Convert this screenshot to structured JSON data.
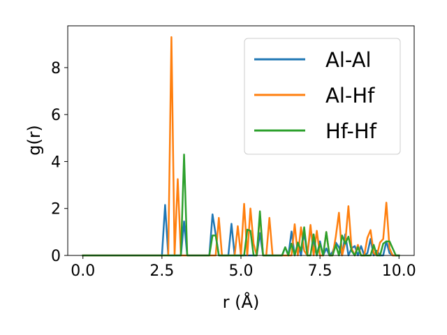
{
  "chart_data": {
    "type": "line",
    "xlabel": "r (Å)",
    "ylabel": "g(r)",
    "xlim": [
      -0.48,
      10.48
    ],
    "ylim": [
      0,
      9.78
    ],
    "xticks": [
      0.0,
      2.5,
      5.0,
      7.5,
      10.0
    ],
    "xtick_labels": [
      "0.0",
      "2.5",
      "5.0",
      "7.5",
      "10.0"
    ],
    "yticks": [
      0,
      2,
      4,
      6,
      8
    ],
    "ytick_labels": [
      "0",
      "2",
      "4",
      "6",
      "8"
    ],
    "grid": false,
    "legend_position": "top-right",
    "series": [
      {
        "name": "Al-Al",
        "color": "#1f77b4",
        "x": [
          0.0,
          2.5,
          2.6,
          2.7,
          2.8,
          3.0,
          3.1,
          3.2,
          3.3,
          3.4,
          4.0,
          4.1,
          4.2,
          4.3,
          4.6,
          4.7,
          4.8,
          5.0,
          5.1,
          5.2,
          5.3,
          5.5,
          5.6,
          5.7,
          6.3,
          6.4,
          6.5,
          6.6,
          6.7,
          6.8,
          6.9,
          7.0,
          7.1,
          7.2,
          7.3,
          7.4,
          7.5,
          7.6,
          7.7,
          7.8,
          7.9,
          8.0,
          8.1,
          8.2,
          8.3,
          8.4,
          8.5,
          8.6,
          8.7,
          8.8,
          8.9,
          9.0,
          9.1,
          9.2,
          9.3,
          9.4,
          9.5,
          9.6,
          9.7,
          9.8,
          10.0
        ],
        "y": [
          0,
          0,
          2.15,
          0,
          0,
          0,
          0,
          1.45,
          0,
          0,
          0,
          1.75,
          0.9,
          0,
          0,
          1.35,
          0,
          0,
          0,
          0,
          0,
          0,
          0.95,
          0,
          0,
          0.35,
          0,
          1.02,
          0,
          0.5,
          0,
          1.0,
          0,
          1.12,
          0.5,
          0,
          0.6,
          0,
          0.3,
          0,
          0.15,
          0.55,
          0.35,
          0,
          0.9,
          0,
          0.3,
          0.4,
          0,
          0.4,
          0,
          0.1,
          0.7,
          0,
          0.2,
          0,
          0,
          0.6,
          0.1,
          0,
          0
        ]
      },
      {
        "name": "Al-Hf",
        "color": "#ff7f0e",
        "x": [
          0.0,
          2.7,
          2.8,
          2.9,
          3.0,
          3.1,
          3.2,
          4.2,
          4.3,
          4.4,
          4.8,
          4.9,
          5.0,
          5.1,
          5.2,
          5.3,
          5.4,
          5.5,
          5.6,
          5.7,
          5.8,
          5.9,
          6.0,
          6.1,
          6.2,
          6.5,
          6.6,
          6.7,
          6.8,
          6.9,
          7.0,
          7.1,
          7.2,
          7.3,
          7.4,
          7.5,
          7.6,
          7.7,
          7.8,
          7.9,
          8.0,
          8.1,
          8.2,
          8.3,
          8.4,
          8.5,
          8.6,
          8.7,
          8.8,
          8.9,
          9.0,
          9.1,
          9.2,
          9.3,
          9.4,
          9.5,
          9.6,
          9.7,
          9.8,
          9.9,
          10.0
        ],
        "y": [
          0,
          0,
          9.3,
          0,
          3.25,
          0,
          0,
          0,
          1.6,
          0,
          0,
          1.25,
          0,
          2.2,
          0,
          2.0,
          0.5,
          0,
          1.75,
          0,
          0,
          1.6,
          0,
          0,
          0,
          0,
          0,
          1.33,
          0,
          1.2,
          0.2,
          0,
          1.3,
          0,
          1.05,
          0,
          0,
          1.0,
          0,
          0,
          0.8,
          1.82,
          0,
          0.55,
          2.1,
          0.3,
          0,
          0.45,
          0,
          0,
          0.75,
          1.08,
          0.1,
          0,
          0.55,
          0.7,
          2.25,
          0.3,
          0,
          0,
          0
        ]
      },
      {
        "name": "Hf-Hf",
        "color": "#2ca02c",
        "x": [
          0.0,
          3.1,
          3.2,
          3.3,
          4.0,
          4.1,
          4.2,
          4.3,
          4.5,
          4.6,
          5.1,
          5.2,
          5.3,
          5.4,
          5.5,
          5.6,
          5.7,
          5.8,
          6.3,
          6.4,
          6.5,
          6.6,
          6.7,
          6.8,
          6.9,
          7.0,
          7.1,
          7.2,
          7.3,
          7.4,
          7.5,
          7.6,
          7.7,
          7.8,
          7.9,
          8.0,
          8.1,
          8.2,
          8.3,
          8.4,
          8.5,
          8.6,
          8.7,
          8.8,
          9.0,
          9.1,
          9.2,
          9.3,
          9.4,
          9.5,
          9.6,
          9.7,
          9.8,
          9.9,
          10.0
        ],
        "y": [
          0,
          0,
          4.3,
          0,
          0,
          0.85,
          0.85,
          0,
          0,
          0,
          0,
          1.1,
          1.05,
          0,
          0,
          1.88,
          0,
          0,
          0,
          0.35,
          0,
          0.5,
          0,
          0.55,
          0.2,
          1.2,
          0,
          0,
          0.9,
          0,
          0.5,
          0,
          1.0,
          0,
          0,
          0.45,
          0,
          0.85,
          0.5,
          0.8,
          0.2,
          0,
          0.35,
          0,
          0,
          0,
          0.45,
          0,
          0,
          0.5,
          0.6,
          0.6,
          0.3,
          0,
          0
        ]
      }
    ]
  }
}
